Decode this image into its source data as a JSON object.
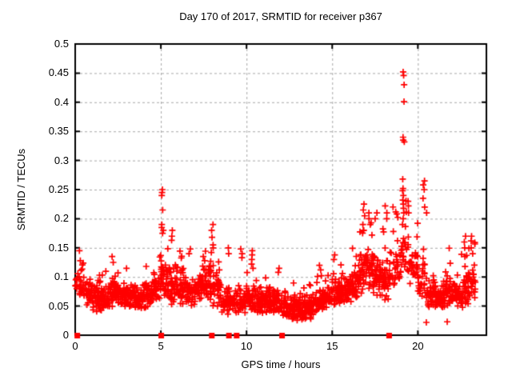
{
  "chart_data": {
    "type": "scatter",
    "title": "Day 170 of 2017, SRMTID for receiver p367",
    "xlabel": "GPS time / hours",
    "ylabel": "SRMTID / TECUs",
    "xlim": [
      0,
      24
    ],
    "ylim": [
      0,
      0.5
    ],
    "x_ticks": [
      0,
      5,
      10,
      15,
      20
    ],
    "x_tick_labels": [
      "0",
      "5",
      "10",
      "15",
      "20"
    ],
    "y_ticks": [
      0,
      0.05,
      0.1,
      0.15,
      0.2,
      0.25,
      0.3,
      0.35,
      0.4,
      0.45,
      0.5
    ],
    "y_tick_labels": [
      "0",
      "0.05",
      "0.1",
      "0.15",
      "0.2",
      "0.25",
      "0.3",
      "0.35",
      "0.4",
      "0.45",
      "0.5"
    ],
    "grid": true,
    "legend": "none",
    "background_color": "#ffffff",
    "border_color": "#000000",
    "grid_color": "#a8a8a8",
    "series": [
      {
        "name": "SRMTID",
        "marker": "plus",
        "color": "#ff0000",
        "bins_format": [
          "x_start_hour",
          "x_end_hour",
          "point_count",
          "y_min_TECU",
          "y_max_TECU",
          "y_typical_TECU"
        ],
        "density_bins": [
          [
            0.0,
            0.5,
            26,
            0.055,
            0.145,
            0.085
          ],
          [
            0.5,
            1.0,
            34,
            0.045,
            0.125,
            0.075
          ],
          [
            1.0,
            1.5,
            40,
            0.03,
            0.11,
            0.062
          ],
          [
            1.5,
            2.0,
            40,
            0.028,
            0.12,
            0.06
          ],
          [
            2.0,
            2.5,
            42,
            0.04,
            0.135,
            0.075
          ],
          [
            2.5,
            3.0,
            42,
            0.04,
            0.12,
            0.07
          ],
          [
            3.0,
            3.5,
            40,
            0.04,
            0.115,
            0.066
          ],
          [
            3.5,
            4.0,
            40,
            0.035,
            0.1,
            0.06
          ],
          [
            4.0,
            4.5,
            38,
            0.04,
            0.125,
            0.07
          ],
          [
            4.5,
            5.0,
            40,
            0.05,
            0.14,
            0.085
          ],
          [
            5.0,
            5.5,
            42,
            0.05,
            0.2,
            0.095
          ],
          [
            5.5,
            6.0,
            40,
            0.045,
            0.165,
            0.085
          ],
          [
            6.0,
            6.5,
            40,
            0.04,
            0.15,
            0.078
          ],
          [
            6.5,
            7.0,
            38,
            0.04,
            0.125,
            0.074
          ],
          [
            7.0,
            7.5,
            40,
            0.05,
            0.14,
            0.085
          ],
          [
            7.5,
            8.0,
            42,
            0.05,
            0.165,
            0.09
          ],
          [
            8.0,
            8.5,
            36,
            0.04,
            0.15,
            0.08
          ],
          [
            8.5,
            9.0,
            32,
            0.03,
            0.13,
            0.06
          ],
          [
            9.0,
            9.5,
            30,
            0.03,
            0.115,
            0.058
          ],
          [
            9.5,
            10.0,
            34,
            0.03,
            0.12,
            0.058
          ],
          [
            10.0,
            10.5,
            42,
            0.03,
            0.13,
            0.062
          ],
          [
            10.5,
            11.0,
            40,
            0.03,
            0.115,
            0.06
          ],
          [
            11.0,
            11.5,
            40,
            0.03,
            0.11,
            0.06
          ],
          [
            11.5,
            12.0,
            38,
            0.025,
            0.105,
            0.055
          ],
          [
            12.0,
            12.5,
            40,
            0.02,
            0.095,
            0.05
          ],
          [
            12.5,
            13.0,
            44,
            0.02,
            0.09,
            0.048
          ],
          [
            13.0,
            13.5,
            44,
            0.015,
            0.085,
            0.045
          ],
          [
            13.5,
            14.0,
            44,
            0.02,
            0.09,
            0.05
          ],
          [
            14.0,
            14.5,
            40,
            0.03,
            0.105,
            0.06
          ],
          [
            14.5,
            15.0,
            40,
            0.04,
            0.115,
            0.065
          ],
          [
            15.0,
            15.5,
            40,
            0.04,
            0.125,
            0.07
          ],
          [
            15.5,
            16.0,
            40,
            0.05,
            0.13,
            0.08
          ],
          [
            16.0,
            16.5,
            40,
            0.05,
            0.15,
            0.085
          ],
          [
            16.5,
            17.0,
            40,
            0.06,
            0.2,
            0.105
          ],
          [
            17.0,
            17.5,
            40,
            0.06,
            0.205,
            0.108
          ],
          [
            17.5,
            18.0,
            40,
            0.05,
            0.195,
            0.1
          ],
          [
            18.0,
            18.5,
            36,
            0.05,
            0.21,
            0.1
          ],
          [
            18.5,
            19.0,
            30,
            0.06,
            0.24,
            0.115
          ],
          [
            19.0,
            19.5,
            28,
            0.08,
            0.24,
            0.14
          ],
          [
            19.5,
            20.0,
            32,
            0.08,
            0.215,
            0.125
          ],
          [
            20.0,
            20.5,
            30,
            0.05,
            0.2,
            0.095
          ],
          [
            20.5,
            21.0,
            36,
            0.04,
            0.12,
            0.068
          ],
          [
            21.0,
            21.5,
            40,
            0.04,
            0.115,
            0.065
          ],
          [
            21.5,
            22.0,
            40,
            0.04,
            0.15,
            0.075
          ],
          [
            22.0,
            22.5,
            40,
            0.04,
            0.13,
            0.07
          ],
          [
            22.5,
            23.0,
            40,
            0.04,
            0.16,
            0.075
          ],
          [
            23.0,
            23.35,
            24,
            0.05,
            0.17,
            0.088
          ]
        ],
        "peak_columns": [
          {
            "x": 0.25,
            "ys": [
              0.145,
              0.128
            ]
          },
          {
            "x": 2.2,
            "ys": [
              0.135,
              0.125
            ]
          },
          {
            "x": 5.05,
            "ys": [
              0.25,
              0.245,
              0.24,
              0.215,
              0.19,
              0.185
            ]
          },
          {
            "x": 5.15,
            "ys": [
              0.18,
              0.175
            ]
          },
          {
            "x": 5.65,
            "ys": [
              0.18,
              0.17,
              0.163
            ]
          },
          {
            "x": 6.7,
            "ys": [
              0.148,
              0.14
            ]
          },
          {
            "x": 7.5,
            "ys": [
              0.135,
              0.128
            ]
          },
          {
            "x": 8.0,
            "ys": [
              0.19,
              0.18,
              0.168,
              0.155,
              0.15,
              0.142
            ]
          },
          {
            "x": 8.95,
            "ys": [
              0.15,
              0.14
            ]
          },
          {
            "x": 9.7,
            "ys": [
              0.148,
              0.14,
              0.133
            ]
          },
          {
            "x": 10.35,
            "ys": [
              0.145,
              0.138,
              0.13,
              0.122,
              0.115
            ]
          },
          {
            "x": 11.9,
            "ys": [
              0.115,
              0.108
            ]
          },
          {
            "x": 14.3,
            "ys": [
              0.12,
              0.112
            ]
          },
          {
            "x": 15.1,
            "ys": [
              0.138,
              0.13
            ]
          },
          {
            "x": 16.85,
            "ys": [
              0.225,
              0.215,
              0.205,
              0.19,
              0.18
            ]
          },
          {
            "x": 17.2,
            "ys": [
              0.21,
              0.2,
              0.19
            ]
          },
          {
            "x": 17.55,
            "ys": [
              0.21,
              0.2
            ]
          },
          {
            "x": 18.15,
            "ys": [
              0.222,
              0.21,
              0.2
            ]
          },
          {
            "x": 19.15,
            "ys": [
              0.452,
              0.446,
              0.43,
              0.401,
              0.34,
              0.335,
              0.332,
              0.268,
              0.252,
              0.248,
              0.24,
              0.232,
              0.225,
              0.218,
              0.21,
              0.2,
              0.19
            ]
          },
          {
            "x": 19.4,
            "ys": [
              0.23,
              0.222,
              0.21
            ]
          },
          {
            "x": 20.35,
            "ys": [
              0.265,
              0.258,
              0.25,
              0.235,
              0.22
            ]
          },
          {
            "x": 20.5,
            "ys": [
              0.21,
              0.022
            ]
          },
          {
            "x": 21.7,
            "ys": [
              0.023
            ]
          },
          {
            "x": 22.75,
            "ys": [
              0.17,
              0.16,
              0.15,
              0.135
            ]
          },
          {
            "x": 23.15,
            "ys": [
              0.17,
              0.162,
              0.15,
              0.14
            ]
          }
        ]
      },
      {
        "name": "baseline-markers",
        "marker": "filled-square",
        "color": "#ff0000",
        "y": 0,
        "x": [
          0.1,
          5.0,
          7.95,
          8.95,
          9.4,
          12.05,
          18.3
        ]
      }
    ]
  }
}
